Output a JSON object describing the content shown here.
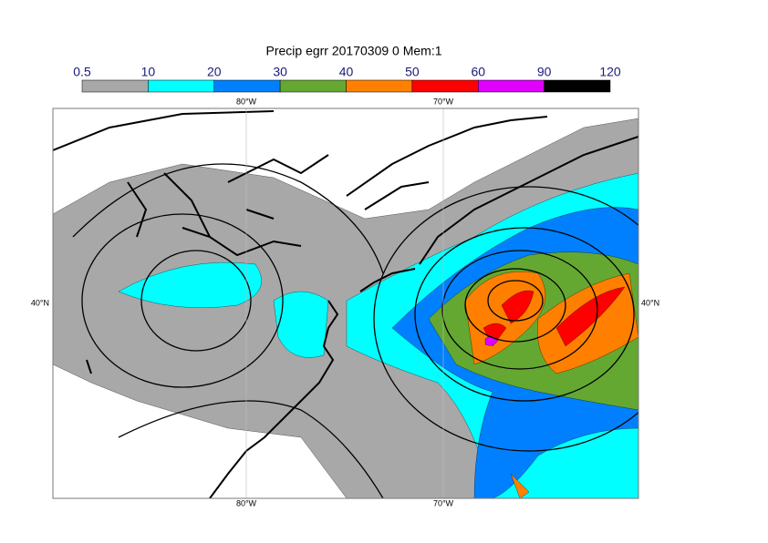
{
  "title": "Precip egrr 20170309 0 Mem:1",
  "colorbar": {
    "levels": [
      0.5,
      10,
      20,
      30,
      40,
      50,
      60,
      90,
      120
    ],
    "colors": [
      "#a8a8a8",
      "#00ffff",
      "#0080ff",
      "#64a832",
      "#ff8000",
      "#ff0000",
      "#e000ff",
      "#000000"
    ]
  },
  "map": {
    "lon_labels": [
      "80°W",
      "70°W"
    ],
    "lat_labels": [
      "40°N"
    ]
  }
}
